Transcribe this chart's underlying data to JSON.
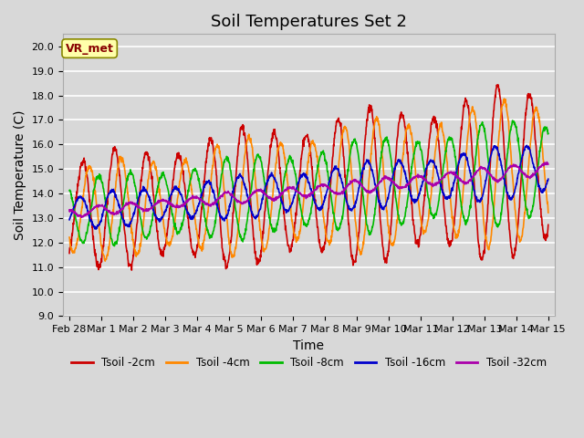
{
  "title": "Soil Temperatures Set 2",
  "xlabel": "Time",
  "ylabel": "Soil Temperature (C)",
  "ylim": [
    9.0,
    20.5
  ],
  "yticks": [
    9.0,
    10.0,
    11.0,
    12.0,
    13.0,
    14.0,
    15.0,
    16.0,
    17.0,
    18.0,
    19.0,
    20.0
  ],
  "background_color": "#d8d8d8",
  "plot_bg_color": "#d8d8d8",
  "grid_color": "#ffffff",
  "series_colors": {
    "Tsoil -2cm": "#cc0000",
    "Tsoil -4cm": "#ff8800",
    "Tsoil -8cm": "#00bb00",
    "Tsoil -16cm": "#0000cc",
    "Tsoil -32cm": "#aa00aa"
  },
  "annotation_text": "VR_met",
  "annotation_bg": "#ffffaa",
  "annotation_border": "#888800",
  "annotation_text_color": "#880000",
  "x_tick_labels": [
    "Feb 28",
    "Mar 1",
    "Mar 2",
    "Mar 3",
    "Mar 4",
    "Mar 5",
    "Mar 6",
    "Mar 7",
    "Mar 8",
    "Mar 9",
    "Mar 10",
    "Mar 11",
    "Mar 12",
    "Mar 13",
    "Mar 14",
    "Mar 15"
  ],
  "title_fontsize": 13,
  "axis_label_fontsize": 10,
  "tick_fontsize": 8,
  "line_width": 1.2,
  "figsize": [
    6.4,
    4.8
  ],
  "dpi": 100
}
